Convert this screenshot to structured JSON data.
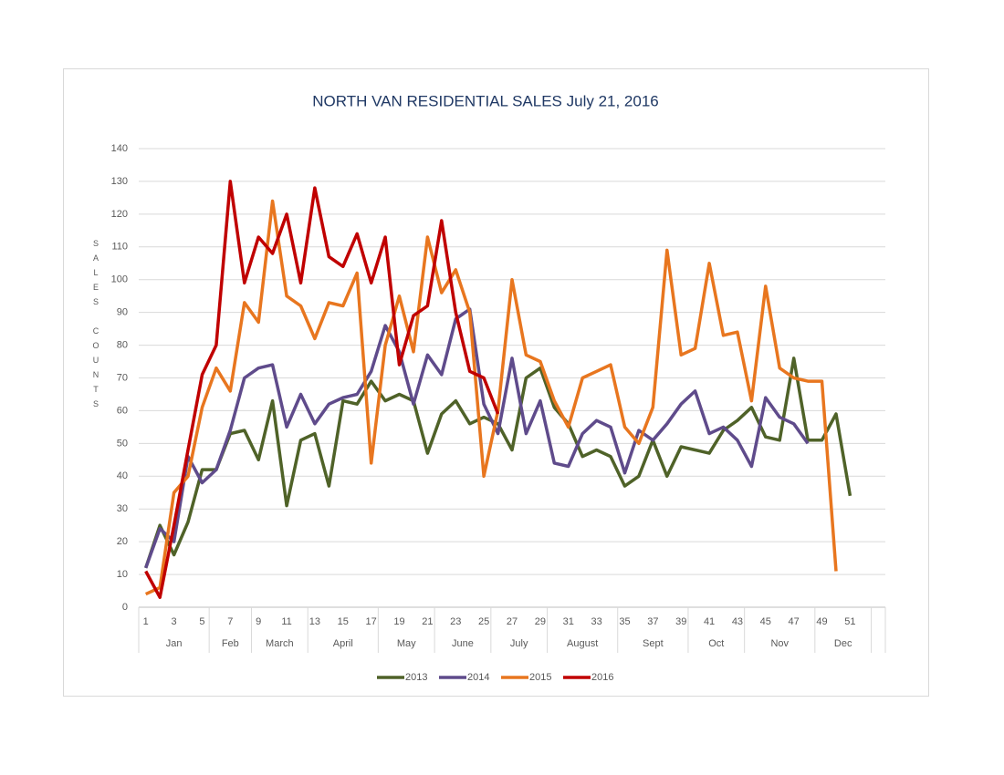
{
  "chart_data": {
    "type": "line",
    "title": "NORTH VAN RESIDENTIAL SALES July 21, 2016",
    "y_label": "SALES COUNTS",
    "categories": [
      1,
      null,
      3,
      null,
      5,
      null,
      7,
      null,
      9,
      null,
      11,
      null,
      13,
      null,
      15,
      null,
      17,
      null,
      19,
      null,
      21,
      null,
      23,
      null,
      25,
      null,
      27,
      null,
      29,
      null,
      31,
      null,
      33,
      null,
      35,
      null,
      37,
      null,
      39,
      null,
      41,
      null,
      43,
      null,
      45,
      null,
      47,
      null,
      49,
      null,
      51,
      null,
      null
    ],
    "months": [
      "Jan",
      "Feb",
      "March",
      "April",
      "May",
      "June",
      "July",
      "August",
      "Sept",
      "Oct",
      "Nov",
      "Dec"
    ],
    "series": [
      {
        "name": "2013",
        "color": "#4f6228",
        "values": [
          12,
          25,
          16,
          26,
          42,
          42,
          53,
          54,
          45,
          63,
          31,
          51,
          53,
          37,
          63,
          62,
          69,
          63,
          65,
          63,
          47,
          59,
          63,
          56,
          58,
          56,
          48,
          70,
          73,
          61,
          56,
          46,
          48,
          46,
          37,
          40,
          51,
          40,
          49,
          48,
          47,
          54,
          57,
          61,
          52,
          51,
          76,
          51,
          51,
          59,
          34,
          null,
          null
        ]
      },
      {
        "name": "2014",
        "color": "#5f4b8b",
        "values": [
          12,
          24,
          20,
          46,
          38,
          42,
          54,
          70,
          73,
          74,
          55,
          65,
          56,
          62,
          64,
          65,
          72,
          86,
          78,
          62,
          77,
          71,
          88,
          91,
          62,
          53,
          76,
          53,
          63,
          44,
          43,
          53,
          57,
          55,
          41,
          54,
          51,
          56,
          62,
          66,
          53,
          55,
          51,
          43,
          64,
          58,
          56,
          50,
          null,
          null,
          null,
          null,
          null
        ]
      },
      {
        "name": "2015",
        "color": "#e8761f",
        "values": [
          4,
          6,
          35,
          40,
          61,
          73,
          66,
          93,
          87,
          124,
          95,
          92,
          82,
          93,
          92,
          102,
          44,
          80,
          95,
          78,
          113,
          96,
          103,
          90,
          40,
          60,
          100,
          77,
          75,
          63,
          55,
          70,
          72,
          74,
          55,
          50,
          61,
          109,
          77,
          79,
          105,
          83,
          84,
          63,
          98,
          73,
          70,
          69,
          69,
          11,
          null,
          null,
          null
        ]
      },
      {
        "name": "2016",
        "color": "#c00000",
        "values": [
          11,
          3,
          25,
          48,
          71,
          80,
          130,
          99,
          113,
          108,
          120,
          99,
          128,
          107,
          104,
          114,
          99,
          113,
          74,
          89,
          92,
          118,
          90,
          72,
          70,
          59,
          null,
          null,
          null,
          null,
          null,
          null,
          null,
          null,
          null,
          null,
          null,
          null,
          null,
          null,
          null,
          null,
          null,
          null,
          null,
          null,
          null,
          null,
          null,
          null,
          null,
          null,
          null
        ]
      }
    ],
    "ylim": [
      0,
      140
    ],
    "yticks": [
      0,
      10,
      20,
      30,
      40,
      50,
      60,
      70,
      80,
      90,
      100,
      110,
      120,
      130,
      140
    ],
    "grid": true,
    "legend": "bottom"
  }
}
